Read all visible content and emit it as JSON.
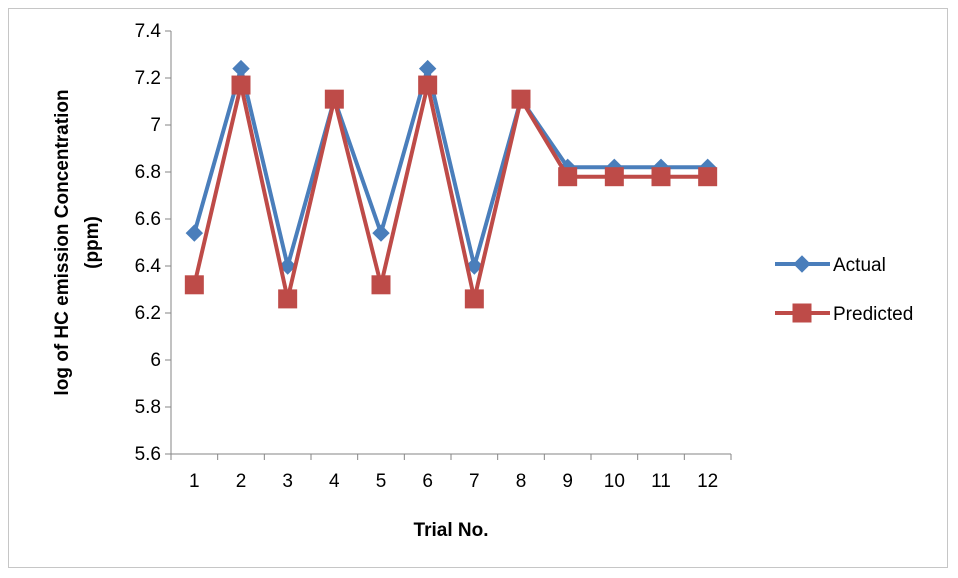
{
  "chart_data": {
    "type": "line",
    "title": "",
    "xlabel": "Trial No.",
    "ylabel_line1": "log  of HC emission Concentration",
    "ylabel_line2": "(ppm)",
    "categories": [
      "1",
      "2",
      "3",
      "4",
      "5",
      "6",
      "7",
      "8",
      "9",
      "10",
      "11",
      "12"
    ],
    "ylim": [
      5.6,
      7.4
    ],
    "yticks": [
      "5.6",
      "5.8",
      "6",
      "6.2",
      "6.4",
      "6.6",
      "6.8",
      "7",
      "7.2",
      "7.4"
    ],
    "grid": false,
    "legend_position": "right",
    "series": [
      {
        "name": "Actual",
        "color": "#4a7ebb",
        "marker": "diamond",
        "values": [
          6.54,
          7.24,
          6.4,
          7.11,
          6.54,
          7.24,
          6.4,
          7.11,
          6.82,
          6.82,
          6.82,
          6.82
        ]
      },
      {
        "name": "Predicted",
        "color": "#be4b48",
        "marker": "square",
        "values": [
          6.32,
          7.17,
          6.26,
          7.11,
          6.32,
          7.17,
          6.26,
          7.11,
          6.78,
          6.78,
          6.78,
          6.78
        ]
      }
    ]
  }
}
